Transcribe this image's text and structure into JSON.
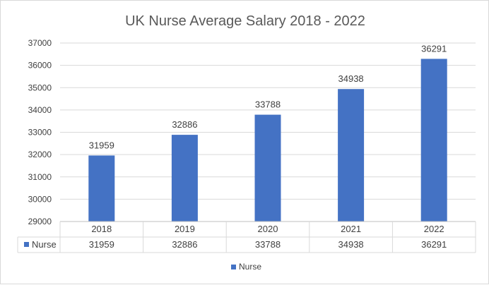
{
  "chart_data": {
    "type": "bar",
    "title": "UK Nurse Average Salary 2018 - 2022",
    "categories": [
      "2018",
      "2019",
      "2020",
      "2021",
      "2022"
    ],
    "series": [
      {
        "name": "Nurse",
        "values": [
          31959,
          32886,
          33788,
          34938,
          36291
        ],
        "color": "#4472c4"
      }
    ],
    "ylim": [
      29000,
      37000
    ],
    "yticks": [
      "29000",
      "30000",
      "31000",
      "32000",
      "33000",
      "34000",
      "35000",
      "36000",
      "37000"
    ],
    "grid": true,
    "data_table": true,
    "legend": "bottom"
  }
}
